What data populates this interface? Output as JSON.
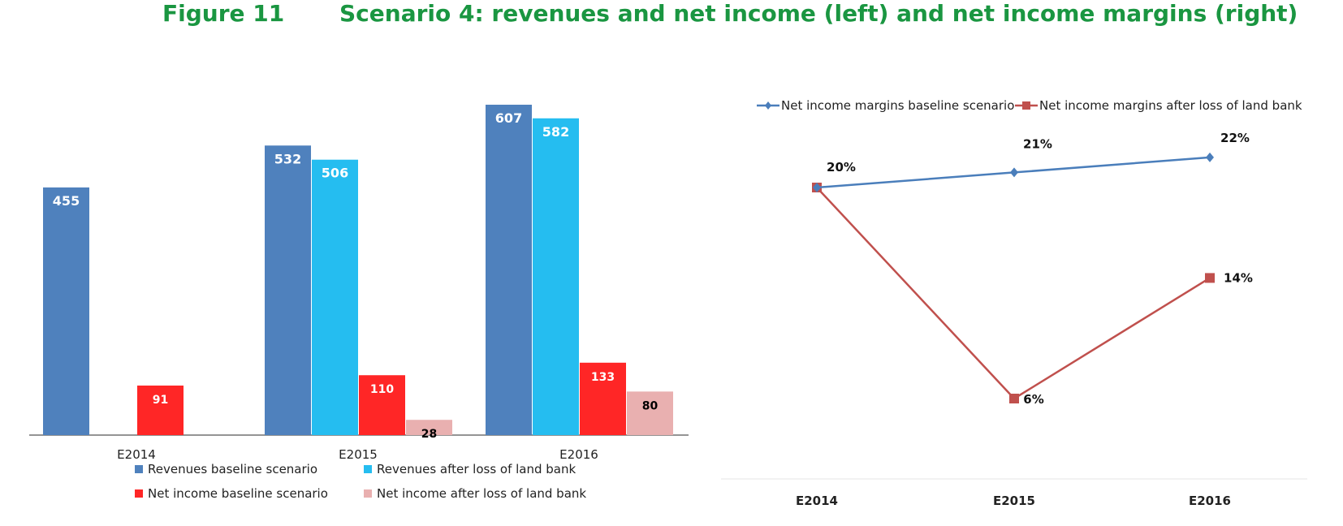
{
  "figure": {
    "label": "Figure 11",
    "title": "Scenario 4: revenues and net income (left) and net income margins (right)"
  },
  "chart_data": [
    {
      "type": "bar",
      "categories": [
        "E2014",
        "E2015",
        "E2016"
      ],
      "series": [
        {
          "name": "Revenues baseline scenario",
          "values": [
            455,
            532,
            607
          ],
          "color": "#4f81bd",
          "label_color": "#ffffff"
        },
        {
          "name": "Revenues after loss of land bank",
          "values": [
            null,
            506,
            582
          ],
          "color": "#25bdf0",
          "label_color": "#ffffff"
        },
        {
          "name": "Net income baseline scenario",
          "values": [
            91,
            110,
            133
          ],
          "color": "#ff2626",
          "label_color": "#ffffff"
        },
        {
          "name": "Net income after loss of land bank",
          "values": [
            null,
            28,
            80
          ],
          "color": "#e9b0b0",
          "label_color": "#000000"
        }
      ],
      "ylim": [
        0,
        607
      ],
      "legend": "bottom",
      "grid": false
    },
    {
      "type": "line",
      "categories": [
        "E2014",
        "E2015",
        "E2016"
      ],
      "series": [
        {
          "name": "Net income margins baseline scenario",
          "values": [
            20,
            21,
            22
          ],
          "labels": [
            "20%",
            "21%",
            "22%"
          ],
          "color": "#4a7ebb",
          "marker": "diamond"
        },
        {
          "name": "Net income margins after loss of land bank",
          "values": [
            20,
            6,
            14
          ],
          "labels": [
            "",
            "6%",
            "14%"
          ],
          "color": "#c0504d",
          "marker": "square"
        }
      ],
      "ylim": [
        0,
        24
      ],
      "legend": "top",
      "grid": false
    }
  ]
}
